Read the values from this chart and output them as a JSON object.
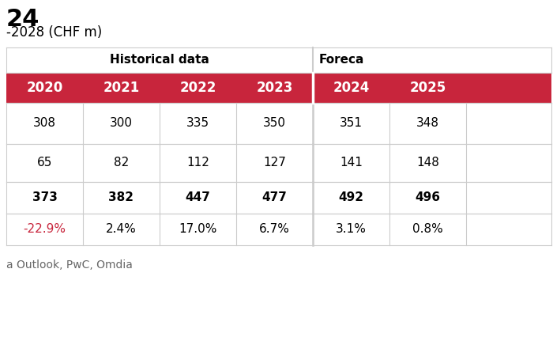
{
  "subtitle_line1": "24",
  "subtitle_line2": "-2028 (CHF m)",
  "hist_header": "Historical data",
  "fore_header": "Foreca",
  "years": [
    "2020",
    "2021",
    "2022",
    "2023",
    "2024",
    "2025"
  ],
  "row1": [
    "308",
    "300",
    "335",
    "350",
    "351",
    "348"
  ],
  "row2": [
    "65",
    "82",
    "112",
    "127",
    "141",
    "148"
  ],
  "row3": [
    "373",
    "382",
    "447",
    "477",
    "492",
    "496"
  ],
  "row4": [
    "-22.9%",
    "2.4%",
    "17.0%",
    "6.7%",
    "3.1%",
    "0.8%"
  ],
  "header_bg": "#C8253C",
  "header_text": "#FFFFFF",
  "grid_color": "#CCCCCC",
  "text_color": "#000000",
  "red_color": "#C8253C",
  "footer": "a Outlook, PwC, Omdia",
  "background_color": "#FFFFFF"
}
